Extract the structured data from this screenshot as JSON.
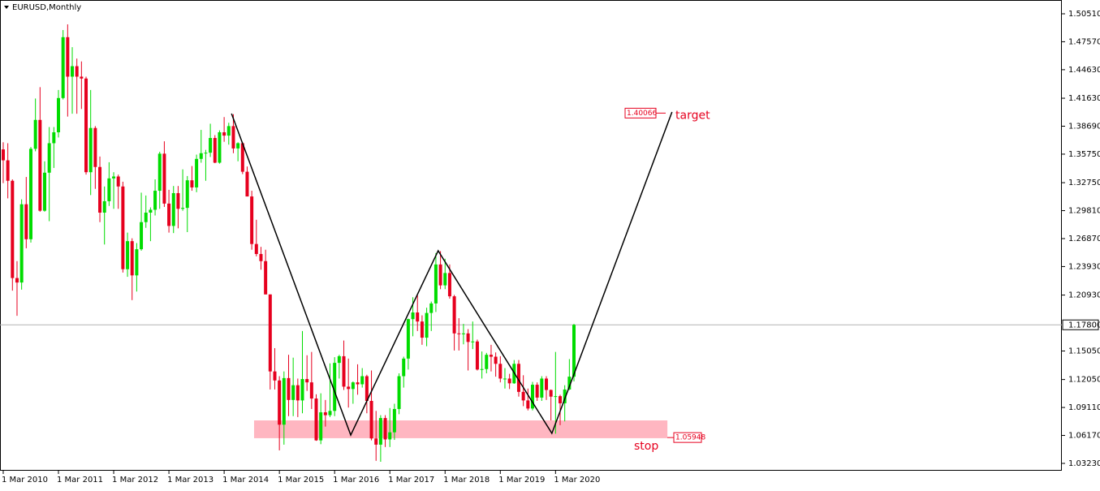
{
  "chart_data": {
    "type": "candlestick",
    "title": "EURUSD,Monthly",
    "ylim": [
      1.0246,
      1.5196
    ],
    "xlim": [
      -0.7,
      230
    ],
    "yticks": [
      {
        "value": 1.5051,
        "label": "1.50510"
      },
      {
        "value": 1.4757,
        "label": "1.47570"
      },
      {
        "value": 1.4463,
        "label": "1.44630"
      },
      {
        "value": 1.4163,
        "label": "1.41630"
      },
      {
        "value": 1.3869,
        "label": "1.38690"
      },
      {
        "value": 1.3575,
        "label": "1.35750"
      },
      {
        "value": 1.3275,
        "label": "1.32750"
      },
      {
        "value": 1.2981,
        "label": "1.29810"
      },
      {
        "value": 1.2687,
        "label": "1.26870"
      },
      {
        "value": 1.2393,
        "label": "1.23930"
      },
      {
        "value": 1.2093,
        "label": "1.20930"
      },
      {
        "value": 1.1505,
        "label": "1.15050"
      },
      {
        "value": 1.1205,
        "label": "1.12050"
      },
      {
        "value": 1.0911,
        "label": "1.09110"
      },
      {
        "value": 1.0617,
        "label": "1.06170"
      },
      {
        "value": 1.0323,
        "label": "1.03230"
      }
    ],
    "xticks": [
      {
        "value": 0,
        "label": "1 Mar 2010"
      },
      {
        "value": 12,
        "label": "1 Mar 2011"
      },
      {
        "value": 24,
        "label": "1 Mar 2012"
      },
      {
        "value": 36,
        "label": "1 Mar 2013"
      },
      {
        "value": 48,
        "label": "1 Mar 2014"
      },
      {
        "value": 60,
        "label": "1 Mar 2015"
      },
      {
        "value": 72,
        "label": "1 Mar 2016"
      },
      {
        "value": 84,
        "label": "1 Mar 2017"
      },
      {
        "value": 96,
        "label": "1 Mar 2018"
      },
      {
        "value": 108,
        "label": "1 Mar 2019"
      },
      {
        "value": 120,
        "label": "1 Mar 2020"
      }
    ],
    "bull_color": "#00dc00",
    "bear_color": "#e6001e",
    "ohlc": [
      [
        1.3625,
        1.37,
        1.327,
        1.351
      ],
      [
        1.351,
        1.369,
        1.311,
        1.3295
      ],
      [
        1.3295,
        1.331,
        1.214,
        1.2272
      ],
      [
        1.2272,
        1.245,
        1.1875,
        1.2225
      ],
      [
        1.2225,
        1.31,
        1.215,
        1.3048
      ],
      [
        1.3048,
        1.3335,
        1.2585,
        1.268
      ],
      [
        1.268,
        1.365,
        1.2645,
        1.3631
      ],
      [
        1.3631,
        1.416,
        1.3605,
        1.3935
      ],
      [
        1.3935,
        1.428,
        1.297,
        1.298
      ],
      [
        1.298,
        1.35,
        1.297,
        1.338
      ],
      [
        1.338,
        1.386,
        1.287,
        1.369
      ],
      [
        1.369,
        1.386,
        1.343,
        1.3805
      ],
      [
        1.3805,
        1.425,
        1.375,
        1.4165
      ],
      [
        1.4165,
        1.488,
        1.415,
        1.4805
      ],
      [
        1.4805,
        1.494,
        1.397,
        1.439
      ],
      [
        1.439,
        1.47,
        1.4,
        1.45
      ],
      [
        1.45,
        1.458,
        1.4,
        1.439
      ],
      [
        1.439,
        1.455,
        1.405,
        1.437
      ],
      [
        1.437,
        1.439,
        1.336,
        1.3385
      ],
      [
        1.3385,
        1.425,
        1.3145,
        1.385
      ],
      [
        1.385,
        1.387,
        1.321,
        1.344
      ],
      [
        1.344,
        1.355,
        1.286,
        1.296
      ],
      [
        1.296,
        1.3235,
        1.2625,
        1.308
      ],
      [
        1.308,
        1.349,
        1.303,
        1.332
      ],
      [
        1.332,
        1.3385,
        1.3,
        1.334
      ],
      [
        1.334,
        1.336,
        1.3,
        1.3235
      ],
      [
        1.3235,
        1.3285,
        1.233,
        1.2365
      ],
      [
        1.2365,
        1.275,
        1.2285,
        1.266
      ],
      [
        1.266,
        1.269,
        1.204,
        1.23
      ],
      [
        1.23,
        1.264,
        1.213,
        1.2575
      ],
      [
        1.2575,
        1.317,
        1.256,
        1.286
      ],
      [
        1.286,
        1.314,
        1.28,
        1.296
      ],
      [
        1.296,
        1.3015,
        1.266,
        1.299
      ],
      [
        1.299,
        1.331,
        1.293,
        1.319
      ],
      [
        1.319,
        1.36,
        1.3,
        1.358
      ],
      [
        1.358,
        1.371,
        1.302,
        1.3055
      ],
      [
        1.3055,
        1.32,
        1.275,
        1.282
      ],
      [
        1.282,
        1.324,
        1.2745,
        1.3165
      ],
      [
        1.3165,
        1.324,
        1.2795,
        1.3
      ],
      [
        1.3,
        1.3415,
        1.298,
        1.301
      ],
      [
        1.301,
        1.3345,
        1.2755,
        1.33
      ],
      [
        1.33,
        1.345,
        1.319,
        1.3225
      ],
      [
        1.3225,
        1.357,
        1.3175,
        1.3525
      ],
      [
        1.3525,
        1.383,
        1.3485,
        1.3585
      ],
      [
        1.3585,
        1.362,
        1.3295,
        1.359
      ],
      [
        1.359,
        1.3895,
        1.3545,
        1.3745
      ],
      [
        1.3745,
        1.3775,
        1.348,
        1.3485
      ],
      [
        1.3485,
        1.3825,
        1.3475,
        1.3805
      ],
      [
        1.3805,
        1.3965,
        1.3705,
        1.377
      ],
      [
        1.377,
        1.3905,
        1.3675,
        1.387
      ],
      [
        1.387,
        1.3995,
        1.3585,
        1.3635
      ],
      [
        1.3635,
        1.37,
        1.35,
        1.369
      ],
      [
        1.369,
        1.37,
        1.3365,
        1.339
      ],
      [
        1.339,
        1.3445,
        1.313,
        1.313
      ],
      [
        1.313,
        1.319,
        1.257,
        1.263
      ],
      [
        1.263,
        1.2885,
        1.25,
        1.2525
      ],
      [
        1.2525,
        1.26,
        1.236,
        1.245
      ],
      [
        1.245,
        1.257,
        1.21,
        1.21
      ],
      [
        1.21,
        1.21,
        1.11,
        1.129
      ],
      [
        1.129,
        1.1535,
        1.11,
        1.1195
      ],
      [
        1.1195,
        1.124,
        1.046,
        1.073
      ],
      [
        1.073,
        1.129,
        1.052,
        1.122
      ],
      [
        1.122,
        1.1465,
        1.082,
        1.099
      ],
      [
        1.099,
        1.1435,
        1.082,
        1.1145
      ],
      [
        1.1145,
        1.1215,
        1.081,
        1.0985
      ],
      [
        1.0985,
        1.1715,
        1.085,
        1.121
      ],
      [
        1.121,
        1.146,
        1.1085,
        1.1175
      ],
      [
        1.1175,
        1.1495,
        1.0895,
        1.1005
      ],
      [
        1.1005,
        1.105,
        1.056,
        1.0565
      ],
      [
        1.0565,
        1.106,
        1.0525,
        1.086
      ],
      [
        1.086,
        1.099,
        1.071,
        1.083
      ],
      [
        1.083,
        1.1375,
        1.081,
        1.0875
      ],
      [
        1.0875,
        1.144,
        1.082,
        1.138
      ],
      [
        1.138,
        1.1465,
        1.1215,
        1.145
      ],
      [
        1.145,
        1.1615,
        1.1095,
        1.113
      ],
      [
        1.113,
        1.1425,
        1.091,
        1.1105
      ],
      [
        1.1105,
        1.1185,
        1.095,
        1.1175
      ],
      [
        1.1175,
        1.1365,
        1.1045,
        1.1155
      ],
      [
        1.1155,
        1.1325,
        1.112,
        1.124
      ],
      [
        1.124,
        1.1255,
        1.085,
        1.098
      ],
      [
        1.098,
        1.13,
        1.0565,
        1.0585
      ],
      [
        1.0585,
        1.0875,
        1.035,
        1.052
      ],
      [
        1.052,
        1.083,
        1.034,
        1.08
      ],
      [
        1.08,
        1.083,
        1.0495,
        1.0575
      ],
      [
        1.0575,
        1.0905,
        1.0495,
        1.065
      ],
      [
        1.065,
        1.095,
        1.057,
        1.0895
      ],
      [
        1.0895,
        1.127,
        1.084,
        1.124
      ],
      [
        1.124,
        1.1445,
        1.112,
        1.1425
      ],
      [
        1.1425,
        1.1845,
        1.131,
        1.184
      ],
      [
        1.184,
        1.207,
        1.166,
        1.191
      ],
      [
        1.191,
        1.209,
        1.1715,
        1.1815
      ],
      [
        1.1815,
        1.188,
        1.157,
        1.1645
      ],
      [
        1.1645,
        1.196,
        1.1555,
        1.1905
      ],
      [
        1.1905,
        1.2025,
        1.1715,
        1.2005
      ],
      [
        1.2005,
        1.2535,
        1.1915,
        1.2415
      ],
      [
        1.2415,
        1.2555,
        1.2155,
        1.2195
      ],
      [
        1.2195,
        1.2475,
        1.2155,
        1.2325
      ],
      [
        1.2325,
        1.2415,
        1.2055,
        1.208
      ],
      [
        1.208,
        1.2095,
        1.151,
        1.169
      ],
      [
        1.169,
        1.185,
        1.151,
        1.1685
      ],
      [
        1.1685,
        1.179,
        1.1575,
        1.169
      ],
      [
        1.169,
        1.1735,
        1.13,
        1.16
      ],
      [
        1.16,
        1.1815,
        1.1525,
        1.1605
      ],
      [
        1.1605,
        1.1625,
        1.13,
        1.131
      ],
      [
        1.131,
        1.15,
        1.1215,
        1.1315
      ],
      [
        1.1315,
        1.1485,
        1.127,
        1.1465
      ],
      [
        1.1465,
        1.157,
        1.129,
        1.1445
      ],
      [
        1.1445,
        1.149,
        1.1235,
        1.137
      ],
      [
        1.137,
        1.145,
        1.1175,
        1.1215
      ],
      [
        1.1215,
        1.1325,
        1.111,
        1.1215
      ],
      [
        1.1215,
        1.1265,
        1.1105,
        1.1165
      ],
      [
        1.1165,
        1.141,
        1.116,
        1.137
      ],
      [
        1.137,
        1.141,
        1.1025,
        1.1075
      ],
      [
        1.1075,
        1.125,
        1.0925,
        1.0985
      ],
      [
        1.0985,
        1.111,
        1.088,
        1.09
      ],
      [
        1.09,
        1.118,
        1.088,
        1.115
      ],
      [
        1.115,
        1.1175,
        1.098,
        1.1015
      ],
      [
        1.1015,
        1.124,
        1.098,
        1.1215
      ],
      [
        1.1215,
        1.124,
        1.099,
        1.1095
      ],
      [
        1.1095,
        1.11,
        1.0775,
        1.1025
      ],
      [
        1.1025,
        1.1495,
        1.0635,
        1.103
      ],
      [
        1.103,
        1.1045,
        1.0725,
        1.0955
      ],
      [
        1.0955,
        1.1145,
        1.0765,
        1.11
      ],
      [
        1.11,
        1.142,
        1.1095,
        1.1235
      ],
      [
        1.1235,
        1.179,
        1.1185,
        1.178
      ]
    ],
    "price_line": {
      "value": 1.178,
      "label": "1.17800"
    },
    "pattern": {
      "x": [
        49.6,
        75.5,
        94.5,
        119.2,
        145.3
      ],
      "y": [
        1.4001,
        1.0621,
        1.2559,
        1.0639,
        1.4018
      ]
    },
    "target": {
      "value": 1.40066,
      "label": "1.40066",
      "text": "target"
    },
    "stop": {
      "x": [
        54.5,
        144.3
      ],
      "y": [
        1.0588,
        1.0775
      ],
      "value": 1.05948,
      "label": "1.05948",
      "text": "stop"
    }
  }
}
